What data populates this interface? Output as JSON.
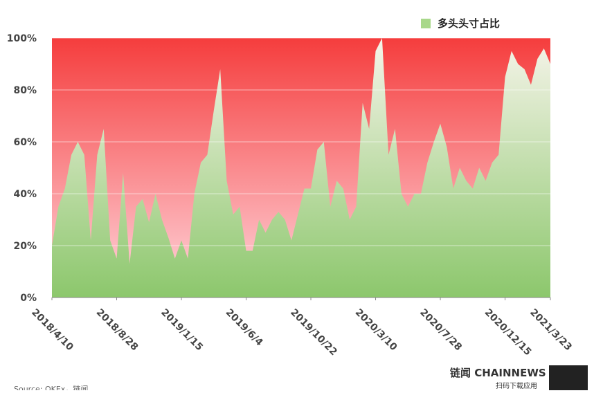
{
  "chart_data": {
    "type": "area",
    "x": [
      "2018-04-10",
      "2018-04-24",
      "2018-05-08",
      "2018-05-22",
      "2018-06-05",
      "2018-06-19",
      "2018-07-03",
      "2018-07-17",
      "2018-07-31",
      "2018-08-14",
      "2018-08-28",
      "2018-09-11",
      "2018-09-25",
      "2018-10-09",
      "2018-10-23",
      "2018-11-06",
      "2018-11-20",
      "2018-12-04",
      "2018-12-18",
      "2019-01-01",
      "2019-01-15",
      "2019-01-29",
      "2019-02-12",
      "2019-02-26",
      "2019-03-12",
      "2019-03-26",
      "2019-04-09",
      "2019-04-23",
      "2019-05-07",
      "2019-05-21",
      "2019-06-04",
      "2019-06-18",
      "2019-07-02",
      "2019-07-16",
      "2019-07-30",
      "2019-08-13",
      "2019-08-27",
      "2019-09-10",
      "2019-09-24",
      "2019-10-08",
      "2019-10-22",
      "2019-11-05",
      "2019-11-19",
      "2019-12-03",
      "2019-12-17",
      "2019-12-31",
      "2020-01-14",
      "2020-01-28",
      "2020-02-11",
      "2020-02-25",
      "2020-03-10",
      "2020-03-24",
      "2020-04-07",
      "2020-04-21",
      "2020-05-05",
      "2020-05-19",
      "2020-06-02",
      "2020-06-16",
      "2020-06-30",
      "2020-07-14",
      "2020-07-28",
      "2020-08-11",
      "2020-08-25",
      "2020-09-08",
      "2020-09-22",
      "2020-10-06",
      "2020-10-20",
      "2020-11-03",
      "2020-11-17",
      "2020-12-01",
      "2020-12-15",
      "2020-12-29",
      "2021-01-12",
      "2021-01-26",
      "2021-02-09",
      "2021-02-23",
      "2021-03-09",
      "2021-03-23"
    ],
    "series": [
      {
        "name": "多头头寸占比",
        "color": "#a8d88a",
        "values": [
          20,
          35,
          42,
          55,
          60,
          55,
          22,
          55,
          65,
          22,
          15,
          48,
          13,
          35,
          38,
          29,
          40,
          30,
          23,
          15,
          22,
          15,
          40,
          52,
          55,
          72,
          88,
          45,
          32,
          35,
          18,
          18,
          30,
          25,
          30,
          33,
          30,
          22,
          32,
          42,
          42,
          57,
          60,
          35,
          45,
          42,
          30,
          35,
          75,
          65,
          95,
          100,
          55,
          65,
          40,
          35,
          40,
          40,
          52,
          60,
          67,
          58,
          42,
          50,
          45,
          42,
          50,
          45,
          52,
          55,
          85,
          95,
          90,
          88,
          82,
          92,
          96,
          90
        ]
      }
    ],
    "xlim": [
      "2018-04-10",
      "2021-03-23"
    ],
    "xticks": [
      {
        "value": "2018-04-10",
        "label": "2018/4/10"
      },
      {
        "value": "2018-08-28",
        "label": "2018/8/28"
      },
      {
        "value": "2019-01-15",
        "label": "2019/1/15"
      },
      {
        "value": "2019-06-04",
        "label": "2019/6/4"
      },
      {
        "value": "2019-10-22",
        "label": "2019/10/22"
      },
      {
        "value": "2020-03-10",
        "label": "2020/3/10"
      },
      {
        "value": "2020-07-28",
        "label": "2020/7/28"
      },
      {
        "value": "2020-12-15",
        "label": "2020/12/15"
      },
      {
        "value": "2021-03-23",
        "label": "2021/3/23"
      }
    ],
    "ylim": [
      0,
      100
    ],
    "yticks": [
      {
        "value": 0,
        "label": "0%"
      },
      {
        "value": 20,
        "label": "20%"
      },
      {
        "value": 40,
        "label": "40%"
      },
      {
        "value": 60,
        "label": "60%"
      },
      {
        "value": 80,
        "label": "80%"
      },
      {
        "value": 100,
        "label": "100%"
      }
    ],
    "grid": true,
    "legend": "top-right",
    "source": "Source: OKEx，链闻",
    "brand": "链闻 CHAINNEWS",
    "brand_sub": "扫码下载应用"
  }
}
